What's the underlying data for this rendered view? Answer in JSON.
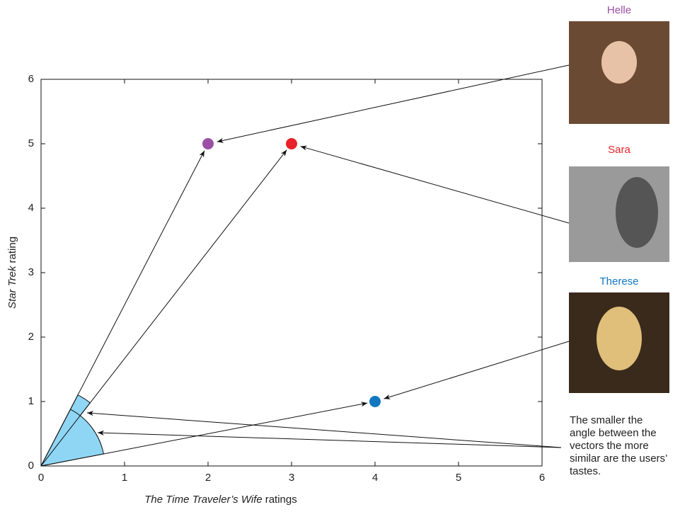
{
  "chart_data": {
    "type": "scatter",
    "xlabel": {
      "italic": "The Time Traveler’s Wife",
      "rest": "ratings"
    },
    "ylabel": {
      "italic": "Star Trek",
      "rest": "rating"
    },
    "xlim": [
      0,
      6
    ],
    "ylim": [
      0,
      6
    ],
    "xticks": [
      0,
      1,
      2,
      3,
      4,
      5,
      6
    ],
    "yticks": [
      0,
      1,
      2,
      3,
      4,
      5,
      6
    ],
    "grid": false,
    "series": [
      {
        "name": "Helle",
        "color": "#9b4fa5",
        "x": [
          2
        ],
        "values": [
          5
        ]
      },
      {
        "name": "Sara",
        "color": "#e8212a",
        "x": [
          3
        ],
        "values": [
          5
        ]
      },
      {
        "name": "Therese",
        "color": "#1177c0",
        "x": [
          4
        ],
        "values": [
          1
        ]
      }
    ],
    "annotation": [
      "The smaller the",
      "angle between the",
      "vectors the more",
      "similar are the users’",
      "tastes."
    ]
  }
}
